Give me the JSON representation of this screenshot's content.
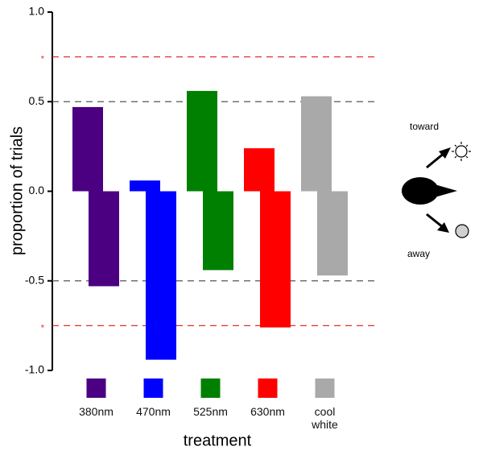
{
  "chart_data": {
    "type": "bar",
    "ylabel": "proportion of trials",
    "xlabel": "treatment",
    "categories": [
      "380nm",
      "470nm",
      "525nm",
      "630nm",
      "cool white"
    ],
    "colors": [
      "#4b0082",
      "#0000ff",
      "#008000",
      "#ff0000",
      "#a9a9a9"
    ],
    "series": [
      {
        "name": "toward",
        "values": [
          0.47,
          0.06,
          0.56,
          0.24,
          0.53
        ]
      },
      {
        "name": "away",
        "values": [
          -0.53,
          -0.94,
          -0.44,
          -0.76,
          -0.47
        ]
      }
    ],
    "ylim": [
      -1,
      1
    ],
    "yticks": [
      {
        "value": -1,
        "label": "-1.0"
      },
      -0.5,
      {
        "value": 0,
        "label": "0.0"
      },
      0.5,
      {
        "value": 1,
        "label": "1.0"
      }
    ],
    "dashed_lines": [
      {
        "value": 0.5,
        "color": "#555555"
      },
      {
        "value": -0.5,
        "color": "#555555"
      },
      {
        "value": 0.75,
        "color": "#e03030",
        "label": "*"
      },
      {
        "value": -0.75,
        "color": "#e03030",
        "label": "*"
      }
    ]
  }
}
